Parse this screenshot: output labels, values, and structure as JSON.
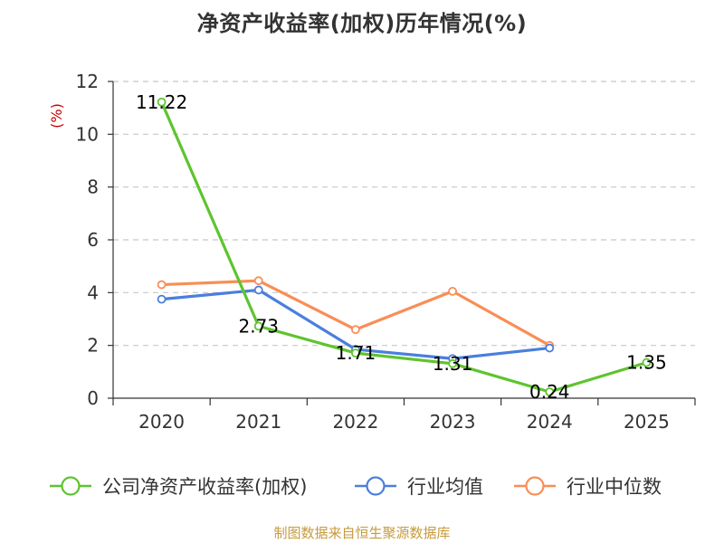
{
  "chart_data": {
    "type": "line",
    "title": "净资产收益率(加权)历年情况(%)",
    "xlabel": "",
    "ylabel": "(%)",
    "categories": [
      "2020",
      "2021",
      "2022",
      "2023",
      "2024",
      "2025"
    ],
    "ylim": [
      0,
      12
    ],
    "yticks": [
      0,
      2,
      4,
      6,
      8,
      10,
      12
    ],
    "grid": true,
    "legend_position": "bottom",
    "series": [
      {
        "name": "公司净资产收益率(加权)",
        "color": "#5ec42e",
        "values": [
          11.22,
          2.73,
          1.71,
          1.31,
          0.24,
          1.35
        ],
        "labels": [
          "11.22",
          "2.73",
          "1.71",
          "1.31",
          "0.24",
          "1.35"
        ]
      },
      {
        "name": "行业均值",
        "color": "#4a7fdc",
        "values": [
          3.75,
          4.1,
          1.85,
          1.5,
          1.9,
          null
        ]
      },
      {
        "name": "行业中位数",
        "color": "#f88e56",
        "values": [
          4.3,
          4.45,
          2.6,
          4.05,
          2.0,
          null
        ]
      }
    ],
    "ylabel_color": "#cc0000",
    "source_note": "制图数据来自恒生聚源数据库",
    "source_color": "#c79a3c"
  }
}
